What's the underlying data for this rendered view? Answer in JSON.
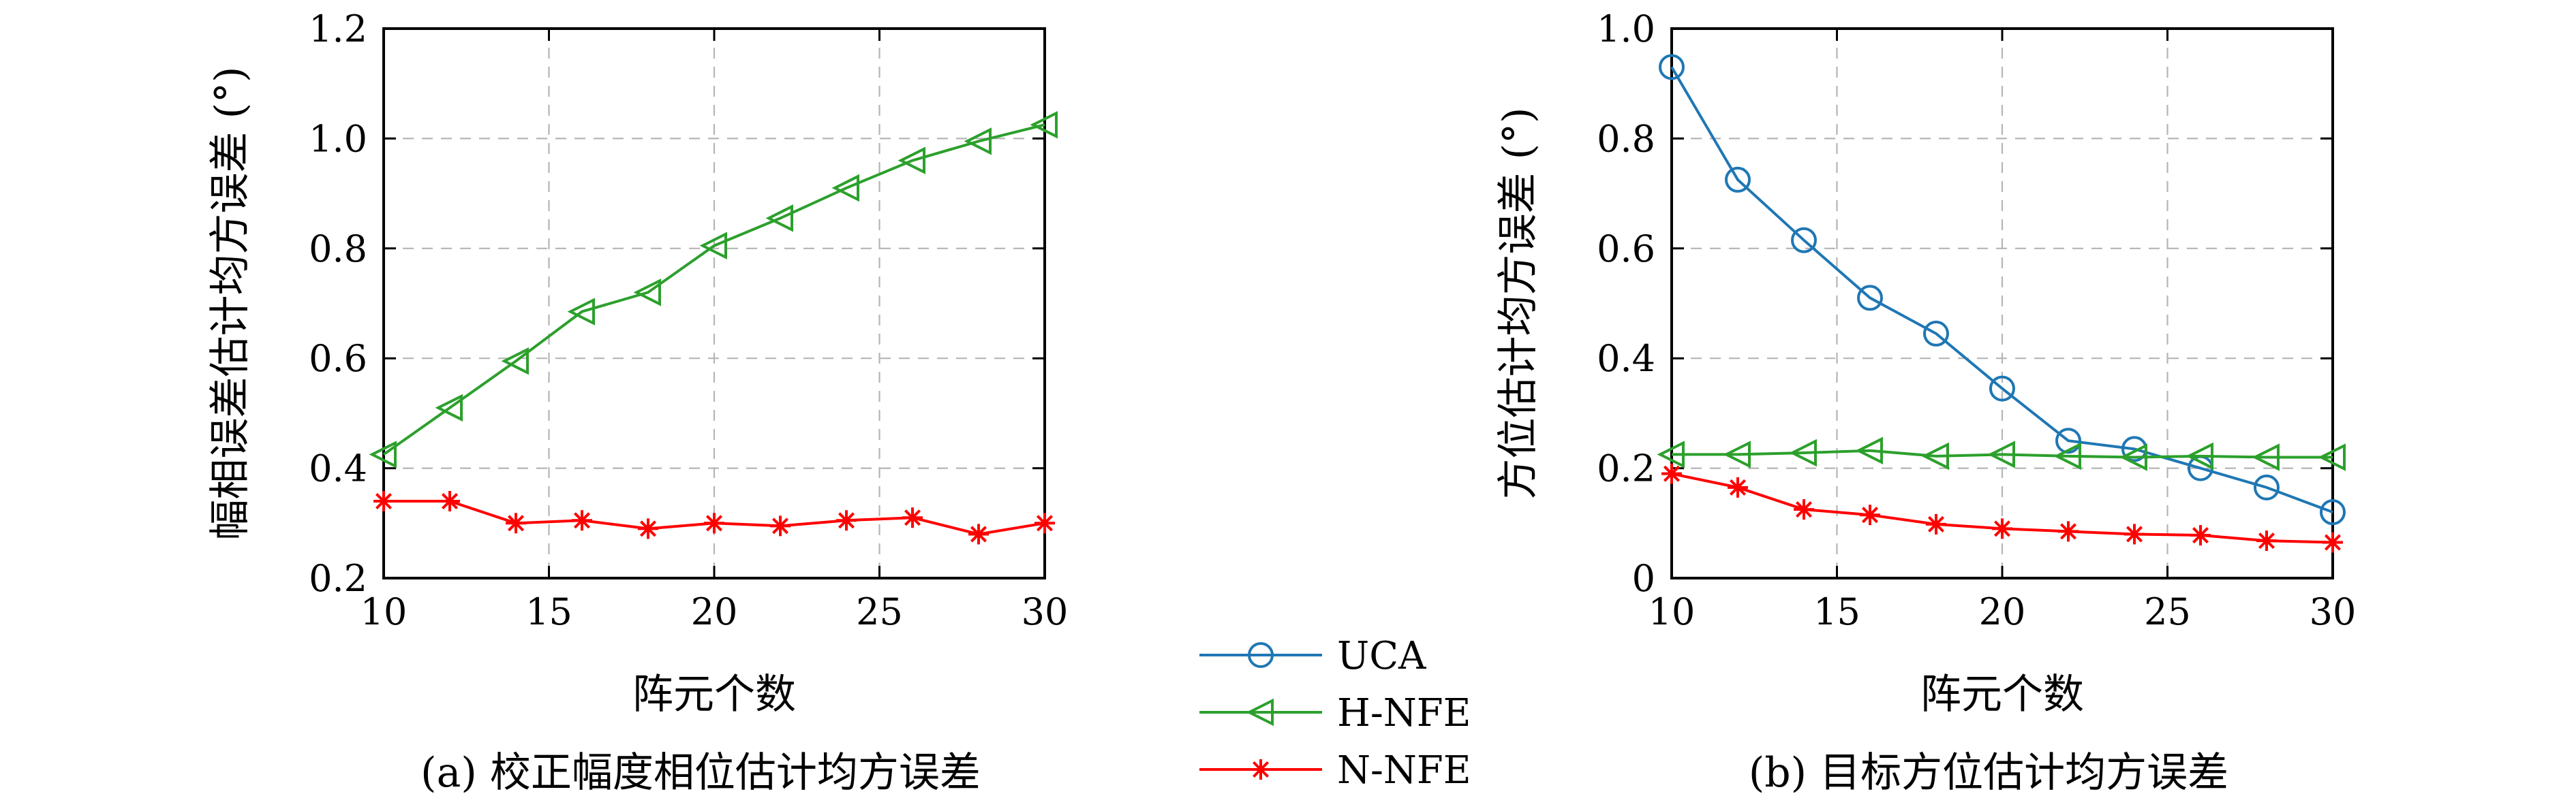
{
  "colors": {
    "UCA": "#1f77b4",
    "H-NFE": "#2ca02c",
    "N-NFE": "#ff0000"
  },
  "legend": {
    "placement": "center-bottom",
    "items": [
      {
        "name": "UCA",
        "marker": "circle-icon"
      },
      {
        "name": "H-NFE",
        "marker": "left-triangle-icon"
      },
      {
        "name": "N-NFE",
        "marker": "asterisk-icon"
      }
    ]
  },
  "chart_data": [
    {
      "type": "line",
      "caption": "(a) 校正幅度相位估计均方误差",
      "xlabel": "阵元个数",
      "ylabel": "幅相误差估计均方误差 (°)",
      "xlim": [
        10,
        30
      ],
      "ylim": [
        0.2,
        1.2
      ],
      "xticks": [
        "10",
        "15",
        "20",
        "25",
        "30"
      ],
      "yticks": [
        "0.2",
        "0.4",
        "0.6",
        "0.8",
        "1.0",
        "1.2"
      ],
      "grid": true,
      "x": [
        10,
        12,
        14,
        16,
        18,
        20,
        22,
        24,
        26,
        28,
        30
      ],
      "series": [
        {
          "name": "H-NFE",
          "values": [
            0.425,
            0.51,
            0.595,
            0.685,
            0.72,
            0.805,
            0.855,
            0.91,
            0.96,
            0.995,
            1.025
          ]
        },
        {
          "name": "N-NFE",
          "values": [
            0.34,
            0.34,
            0.3,
            0.305,
            0.29,
            0.3,
            0.295,
            0.305,
            0.31,
            0.28,
            0.3
          ]
        }
      ]
    },
    {
      "type": "line",
      "caption": "(b) 目标方位估计均方误差",
      "xlabel": "阵元个数",
      "ylabel": "方位估计均方误差 (°)",
      "xlim": [
        10,
        30
      ],
      "ylim": [
        0,
        1.0
      ],
      "xticks": [
        "10",
        "15",
        "20",
        "25",
        "30"
      ],
      "yticks": [
        "0",
        "0.2",
        "0.4",
        "0.6",
        "0.8",
        "1.0"
      ],
      "grid": true,
      "x": [
        10,
        12,
        14,
        16,
        18,
        20,
        22,
        24,
        26,
        28,
        30
      ],
      "series": [
        {
          "name": "UCA",
          "values": [
            0.93,
            0.725,
            0.615,
            0.51,
            0.445,
            0.345,
            0.25,
            0.235,
            0.2,
            0.165,
            0.12
          ]
        },
        {
          "name": "H-NFE",
          "values": [
            0.225,
            0.225,
            0.228,
            0.232,
            0.222,
            0.225,
            0.222,
            0.22,
            0.222,
            0.22,
            0.22
          ]
        },
        {
          "name": "N-NFE",
          "values": [
            0.19,
            0.165,
            0.125,
            0.115,
            0.098,
            0.09,
            0.085,
            0.08,
            0.078,
            0.068,
            0.065
          ]
        }
      ]
    }
  ]
}
